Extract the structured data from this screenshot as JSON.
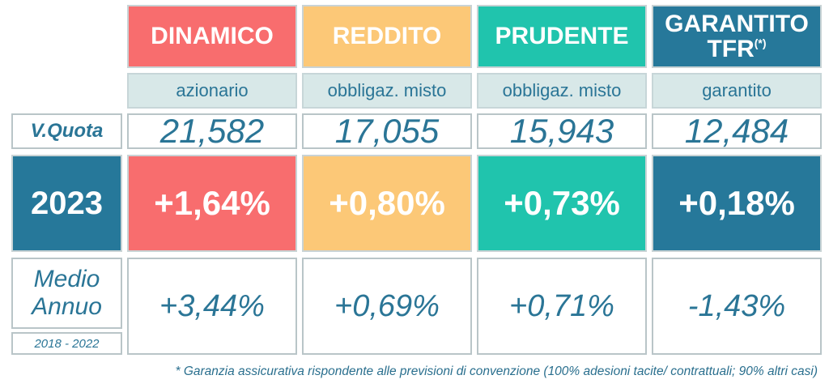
{
  "colors": {
    "dinamico": "#f86d6e",
    "reddito": "#fcc877",
    "prudente": "#20c4ad",
    "garantito": "#26789a",
    "text": "#2a7596"
  },
  "columns": [
    {
      "name": "DINAMICO",
      "type": "azionario",
      "quota": "21,582",
      "perf_2023": "+1,64%",
      "medio_annuo": "+3,44%"
    },
    {
      "name": "REDDITO",
      "type": "obbligaz. misto",
      "quota": "17,055",
      "perf_2023": "+0,80%",
      "medio_annuo": "+0,69%"
    },
    {
      "name": "PRUDENTE",
      "type": "obbligaz. misto",
      "quota": "15,943",
      "perf_2023": "+0,73%",
      "medio_annuo": "+0,71%"
    },
    {
      "name_line1": "GARANTITO",
      "name_line2": "TFR",
      "name_sup": "(*)",
      "type": "garantito",
      "quota": "12,484",
      "perf_2023": "+0,18%",
      "medio_annuo": "-1,43%"
    }
  ],
  "row_labels": {
    "quota": "V.Quota",
    "year": "2023",
    "medio_line1": "Medio",
    "medio_line2": "Annuo",
    "period": "2018 - 2022"
  },
  "footnote": "* Garanzia assicurativa rispondente alle previsioni di convenzione (100% adesioni tacite/ contrattuali; 90% altri casi)"
}
